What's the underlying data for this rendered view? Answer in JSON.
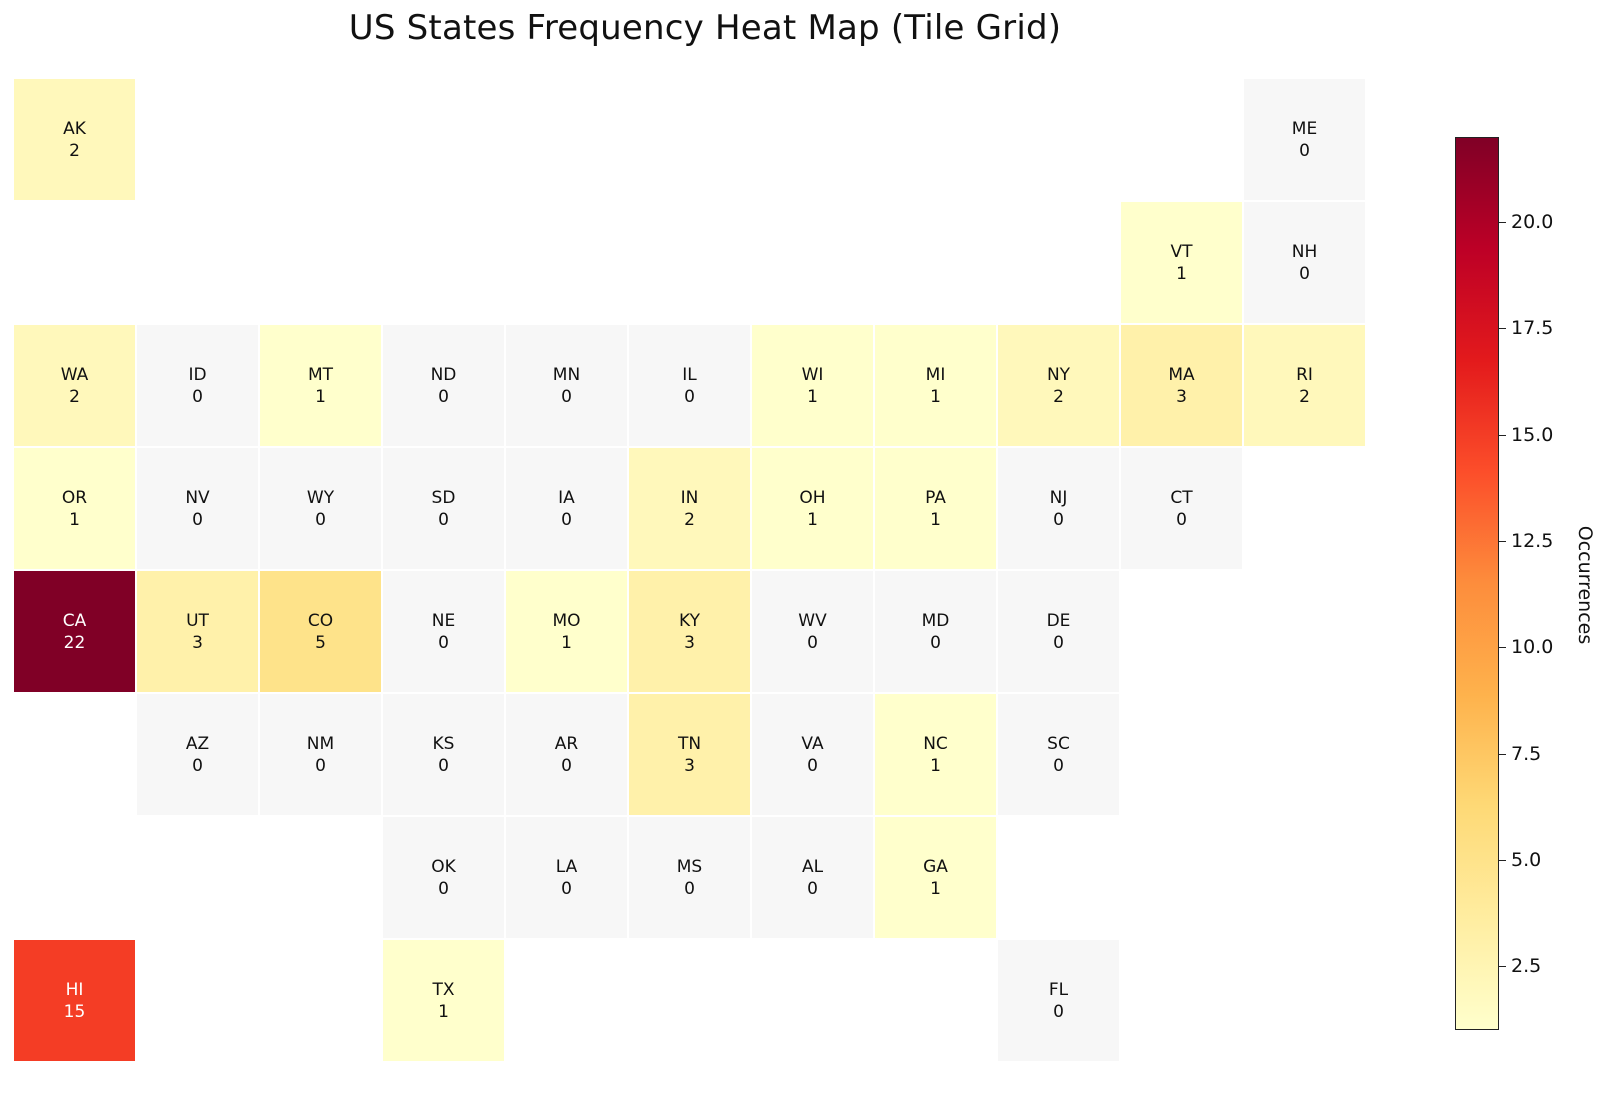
{
  "chart_data": {
    "type": "heatmap",
    "title": "US States Frequency Heat Map (Tile Grid)",
    "colorbar_label": "Occurrences",
    "colorbar_ticks": [
      "2.5",
      "5.0",
      "7.5",
      "10.0",
      "12.5",
      "15.0",
      "17.5",
      "20.0"
    ],
    "colorbar_range": [
      1,
      22
    ],
    "colormap": [
      "#ffffcc",
      "#ffeda0",
      "#fed976",
      "#feb24c",
      "#fd8d3c",
      "#fc4e2a",
      "#e31a1c",
      "#bd0026",
      "#800026"
    ],
    "zero_color": "#f7f7f7",
    "states": [
      {
        "state": "AK",
        "value": 2,
        "row": 0,
        "col": 0
      },
      {
        "state": "ME",
        "value": 0,
        "row": 0,
        "col": 10
      },
      {
        "state": "VT",
        "value": 1,
        "row": 1,
        "col": 9
      },
      {
        "state": "NH",
        "value": 0,
        "row": 1,
        "col": 10
      },
      {
        "state": "WA",
        "value": 2,
        "row": 2,
        "col": 0
      },
      {
        "state": "ID",
        "value": 0,
        "row": 2,
        "col": 1
      },
      {
        "state": "MT",
        "value": 1,
        "row": 2,
        "col": 2
      },
      {
        "state": "ND",
        "value": 0,
        "row": 2,
        "col": 3
      },
      {
        "state": "MN",
        "value": 0,
        "row": 2,
        "col": 4
      },
      {
        "state": "IL",
        "value": 0,
        "row": 2,
        "col": 5
      },
      {
        "state": "WI",
        "value": 1,
        "row": 2,
        "col": 6
      },
      {
        "state": "MI",
        "value": 1,
        "row": 2,
        "col": 7
      },
      {
        "state": "NY",
        "value": 2,
        "row": 2,
        "col": 8
      },
      {
        "state": "MA",
        "value": 3,
        "row": 2,
        "col": 9
      },
      {
        "state": "RI",
        "value": 2,
        "row": 2,
        "col": 10
      },
      {
        "state": "OR",
        "value": 1,
        "row": 3,
        "col": 0
      },
      {
        "state": "NV",
        "value": 0,
        "row": 3,
        "col": 1
      },
      {
        "state": "WY",
        "value": 0,
        "row": 3,
        "col": 2
      },
      {
        "state": "SD",
        "value": 0,
        "row": 3,
        "col": 3
      },
      {
        "state": "IA",
        "value": 0,
        "row": 3,
        "col": 4
      },
      {
        "state": "IN",
        "value": 2,
        "row": 3,
        "col": 5
      },
      {
        "state": "OH",
        "value": 1,
        "row": 3,
        "col": 6
      },
      {
        "state": "PA",
        "value": 1,
        "row": 3,
        "col": 7
      },
      {
        "state": "NJ",
        "value": 0,
        "row": 3,
        "col": 8
      },
      {
        "state": "CT",
        "value": 0,
        "row": 3,
        "col": 9
      },
      {
        "state": "CA",
        "value": 22,
        "row": 4,
        "col": 0
      },
      {
        "state": "UT",
        "value": 3,
        "row": 4,
        "col": 1
      },
      {
        "state": "CO",
        "value": 5,
        "row": 4,
        "col": 2
      },
      {
        "state": "NE",
        "value": 0,
        "row": 4,
        "col": 3
      },
      {
        "state": "MO",
        "value": 1,
        "row": 4,
        "col": 4
      },
      {
        "state": "KY",
        "value": 3,
        "row": 4,
        "col": 5
      },
      {
        "state": "WV",
        "value": 0,
        "row": 4,
        "col": 6
      },
      {
        "state": "MD",
        "value": 0,
        "row": 4,
        "col": 7
      },
      {
        "state": "DE",
        "value": 0,
        "row": 4,
        "col": 8
      },
      {
        "state": "AZ",
        "value": 0,
        "row": 5,
        "col": 1
      },
      {
        "state": "NM",
        "value": 0,
        "row": 5,
        "col": 2
      },
      {
        "state": "KS",
        "value": 0,
        "row": 5,
        "col": 3
      },
      {
        "state": "AR",
        "value": 0,
        "row": 5,
        "col": 4
      },
      {
        "state": "TN",
        "value": 3,
        "row": 5,
        "col": 5
      },
      {
        "state": "VA",
        "value": 0,
        "row": 5,
        "col": 6
      },
      {
        "state": "NC",
        "value": 1,
        "row": 5,
        "col": 7
      },
      {
        "state": "SC",
        "value": 0,
        "row": 5,
        "col": 8
      },
      {
        "state": "OK",
        "value": 0,
        "row": 6,
        "col": 3
      },
      {
        "state": "LA",
        "value": 0,
        "row": 6,
        "col": 4
      },
      {
        "state": "MS",
        "value": 0,
        "row": 6,
        "col": 5
      },
      {
        "state": "AL",
        "value": 0,
        "row": 6,
        "col": 6
      },
      {
        "state": "GA",
        "value": 1,
        "row": 6,
        "col": 7
      },
      {
        "state": "HI",
        "value": 15,
        "row": 7,
        "col": 0
      },
      {
        "state": "TX",
        "value": 1,
        "row": 7,
        "col": 3
      },
      {
        "state": "FL",
        "value": 0,
        "row": 7,
        "col": 8
      }
    ]
  }
}
